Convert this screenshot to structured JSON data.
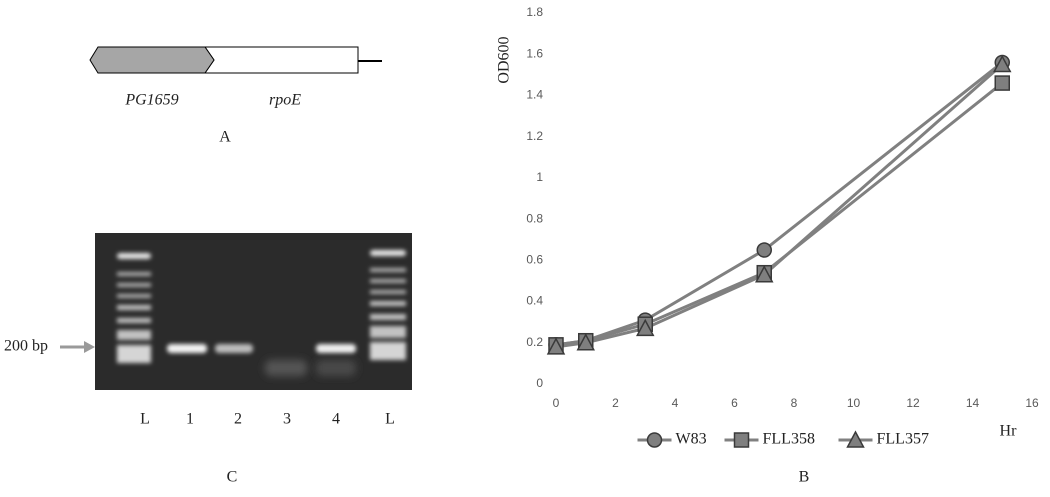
{
  "panel_a": {
    "gene_left": "PG1659",
    "gene_right": "rpoE",
    "label": "A"
  },
  "panel_c": {
    "marker_label": "200 bp",
    "lanes": [
      "L",
      "1",
      "2",
      "3",
      "4",
      "L"
    ],
    "label": "C"
  },
  "chart_data": {
    "type": "line",
    "panel_label": "B",
    "y_label": "OD600",
    "x_label": "Hr",
    "x": [
      0,
      1,
      3,
      7,
      15
    ],
    "series": [
      {
        "name": "W83",
        "color": "#808080",
        "marker": "circle",
        "values": [
          0.19,
          0.21,
          0.31,
          0.65,
          1.56
        ]
      },
      {
        "name": "FLL358",
        "color": "#808080",
        "marker": "square",
        "values": [
          0.19,
          0.21,
          0.29,
          0.54,
          1.46
        ]
      },
      {
        "name": "FLL357",
        "color": "#808080",
        "marker": "triangle",
        "values": [
          0.18,
          0.2,
          0.27,
          0.53,
          1.55
        ]
      }
    ],
    "xlim": [
      0,
      16
    ],
    "xticks": [
      0,
      2,
      4,
      6,
      8,
      10,
      12,
      14,
      16
    ],
    "ylim": [
      0,
      1.8
    ],
    "yticks": [
      0,
      0.2,
      0.4,
      0.6,
      0.8,
      1,
      1.2,
      1.4,
      1.6,
      1.8
    ],
    "grid": false,
    "legend": "bottom"
  }
}
